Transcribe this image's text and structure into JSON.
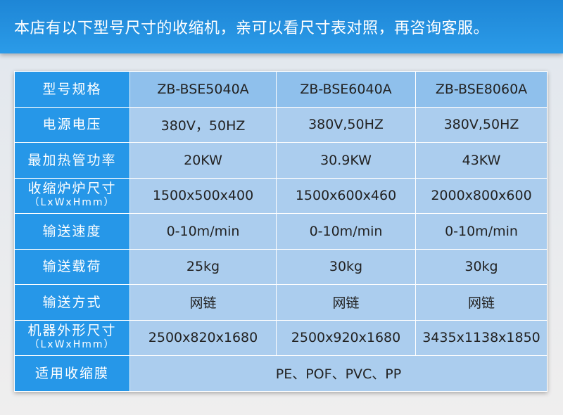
{
  "header": {
    "title": "本店有以下型号尺寸的收缩机，亲可以看尺寸表对照，再咨询客服。"
  },
  "rows": [
    {
      "label": "型号规格",
      "values": [
        "ZB-BSE5040A",
        "ZB-BSE6040A",
        "ZB-BSE8060A"
      ]
    },
    {
      "label": "电源电压",
      "values": [
        "380V，50HZ",
        "380V,50HZ",
        "380V,50HZ"
      ]
    },
    {
      "label": "最加热管功率",
      "values": [
        "20KW",
        "30.9KW",
        "43KW"
      ]
    },
    {
      "label": "收缩炉炉尺寸",
      "sub": "（LxWxHmm）",
      "values": [
        "1500x500x400",
        "1500x600x460",
        "2000x800x600"
      ]
    },
    {
      "label": "输送速度",
      "values": [
        "0-10m/min",
        "0-10m/min",
        "0-10m/min"
      ]
    },
    {
      "label": "输送载荷",
      "values": [
        "25kg",
        "30kg",
        "30kg"
      ]
    },
    {
      "label": "输送方式",
      "values": [
        "网链",
        "网链",
        "网链"
      ]
    },
    {
      "label": "机器外形尺寸",
      "sub": "（LxWxHmm）",
      "values": [
        "2500x820x1680",
        "2500x920x1680",
        "3435x1138x1850"
      ]
    },
    {
      "label": "适用收缩膜",
      "merged": "PE、POF、PVC、PP"
    }
  ]
}
